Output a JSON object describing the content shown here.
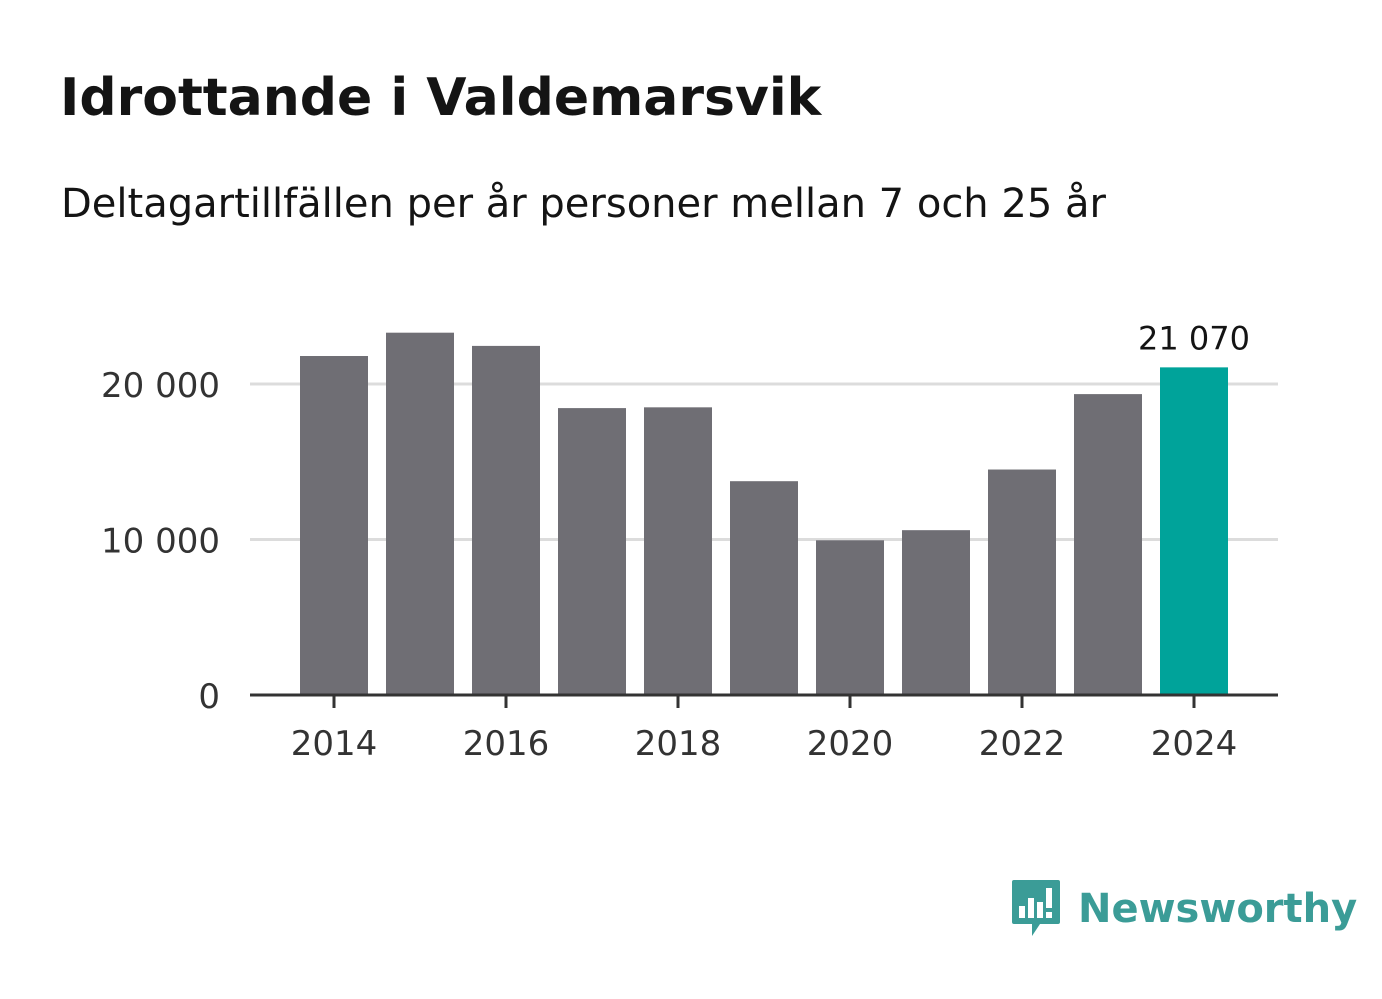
{
  "title": "Idrottande i Valdemarsvik",
  "subtitle": "Deltagartillfällen per år personer mellan 7 och 25 år",
  "brand": {
    "name": "Newsworthy",
    "icon": "newsworthy-logo-icon"
  },
  "colors": {
    "bar": "#6f6e74",
    "highlight": "#00a39a",
    "grid": "#dcdcdc",
    "axis": "#333333",
    "text": "#141414",
    "brand": "#3b9c97"
  },
  "chart_data": {
    "type": "bar",
    "title": "Idrottande i Valdemarsvik",
    "subtitle": "Deltagartillfällen per år personer mellan 7 och 25 år",
    "xlabel": "",
    "ylabel": "",
    "categories": [
      "2014",
      "2015",
      "2016",
      "2017",
      "2018",
      "2019",
      "2020",
      "2021",
      "2022",
      "2023",
      "2024"
    ],
    "values": [
      21800,
      23300,
      22450,
      18450,
      18500,
      13750,
      9950,
      10600,
      14500,
      19350,
      21070
    ],
    "highlight_index": 10,
    "highlight_label": "21 070",
    "ylim": [
      0,
      23300
    ],
    "yticks": [
      0,
      10000,
      20000
    ],
    "ytick_labels": [
      "0",
      "10 000",
      "20 000"
    ],
    "xtick_labels": [
      "2014",
      "2016",
      "2018",
      "2020",
      "2022",
      "2024"
    ],
    "grid": true,
    "legend": "none"
  }
}
